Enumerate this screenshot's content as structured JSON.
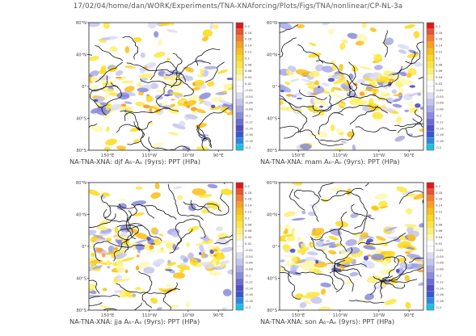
{
  "header": "17/02/04/home/dan/WORK/Experiments/TNA-XNAforcing/Plots/Figs/TNA/nonlinear/CP-NL-3a",
  "chart_data": [
    {
      "type": "heatmap",
      "title": "NA-TNA-XNA: djf A₆–Aₑ (9yrs): PPT (HPa)",
      "xticks": [
        "150°E",
        "110°W",
        "10°W",
        "90°E"
      ],
      "yticks": [
        "80°N",
        "40°N",
        "0°",
        "40°S",
        "80°S"
      ],
      "colorbar_labels": [
        "0.2",
        "0.18",
        "0.16",
        "0.14",
        "0.12",
        "0.1",
        "0.08",
        "0.06",
        "0.04",
        "0.02",
        "-0.02",
        "-0.04",
        "-0.06",
        "-0.08",
        "-0.1",
        "-0.12",
        "-0.14",
        "-0.16",
        "-0.18",
        "-0.2"
      ],
      "colorbar_colors": [
        "#e01818",
        "#ee5030",
        "#f57d2a",
        "#fba01e",
        "#fcc012",
        "#fdd918",
        "#fde63a",
        "#fdf070",
        "#fef8b0",
        "#ffffff",
        "#ffffff",
        "#dcdcf4",
        "#c4c4ee",
        "#a8a8e6",
        "#8a8ade",
        "#6c6cd2",
        "#4e4ec8",
        "#3a56d2",
        "#2a88e0",
        "#18c0ea"
      ]
    },
    {
      "type": "heatmap",
      "title": "NA-TNA-XNA: mam A₆–Aₑ (9yrs): PPT (HPa)",
      "xticks": [
        "150°E",
        "110°W",
        "10°W",
        "90°E"
      ],
      "yticks": [
        "80°N",
        "40°N",
        "0°",
        "40°S",
        "80°S"
      ],
      "colorbar_labels": [
        "0.2",
        "0.18",
        "0.16",
        "0.14",
        "0.12",
        "0.1",
        "0.08",
        "0.06",
        "0.04",
        "0.02",
        "-0.02",
        "-0.04",
        "-0.06",
        "-0.08",
        "-0.1",
        "-0.12",
        "-0.14",
        "-0.16",
        "-0.18",
        "-0.2"
      ],
      "colorbar_colors": [
        "#e01818",
        "#ee5030",
        "#f57d2a",
        "#fba01e",
        "#fcc012",
        "#fdd918",
        "#fde63a",
        "#fdf070",
        "#fef8b0",
        "#ffffff",
        "#ffffff",
        "#dcdcf4",
        "#c4c4ee",
        "#a8a8e6",
        "#8a8ade",
        "#6c6cd2",
        "#4e4ec8",
        "#3a56d2",
        "#2a88e0",
        "#18c0ea"
      ]
    },
    {
      "type": "heatmap",
      "title": "NA-TNA-XNA: jja A₆–Aₑ (9yrs): PPT (HPa)",
      "xticks": [
        "150°E",
        "110°W",
        "10°W",
        "90°E"
      ],
      "yticks": [
        "80°N",
        "40°N",
        "0°",
        "40°S",
        "80°S"
      ],
      "colorbar_labels": [
        "0.2",
        "0.18",
        "0.16",
        "0.14",
        "0.12",
        "0.1",
        "0.08",
        "0.06",
        "0.04",
        "0.02",
        "-0.02",
        "-0.04",
        "-0.06",
        "-0.08",
        "-0.1",
        "-0.12",
        "-0.14",
        "-0.16",
        "-0.18",
        "-0.2"
      ],
      "colorbar_colors": [
        "#e01818",
        "#ee5030",
        "#f57d2a",
        "#fba01e",
        "#fcc012",
        "#fdd918",
        "#fde63a",
        "#fdf070",
        "#fef8b0",
        "#ffffff",
        "#ffffff",
        "#dcdcf4",
        "#c4c4ee",
        "#a8a8e6",
        "#8a8ade",
        "#6c6cd2",
        "#4e4ec8",
        "#3a56d2",
        "#2a88e0",
        "#18c0ea"
      ]
    },
    {
      "type": "heatmap",
      "title": "NA-TNA-XNA: son A₆–Aₑ (9yrs): PPT (HPa)",
      "xticks": [
        "150°E",
        "110°W",
        "10°W",
        "90°E"
      ],
      "yticks": [
        "80°N",
        "40°N",
        "0°",
        "40°S",
        "80°S"
      ],
      "colorbar_labels": [
        "0.2",
        "0.18",
        "0.16",
        "0.14",
        "0.12",
        "0.1",
        "0.08",
        "0.06",
        "0.04",
        "0.02",
        "-0.02",
        "-0.04",
        "-0.06",
        "-0.08",
        "-0.1",
        "-0.12",
        "-0.14",
        "-0.16",
        "-0.18",
        "-0.2"
      ],
      "colorbar_colors": [
        "#e01818",
        "#ee5030",
        "#f57d2a",
        "#fba01e",
        "#fcc012",
        "#fdd918",
        "#fde63a",
        "#fdf070",
        "#fef8b0",
        "#ffffff",
        "#ffffff",
        "#dcdcf4",
        "#c4c4ee",
        "#a8a8e6",
        "#8a8ade",
        "#6c6cd2",
        "#4e4ec8",
        "#3a56d2",
        "#2a88e0",
        "#18c0ea"
      ]
    }
  ]
}
